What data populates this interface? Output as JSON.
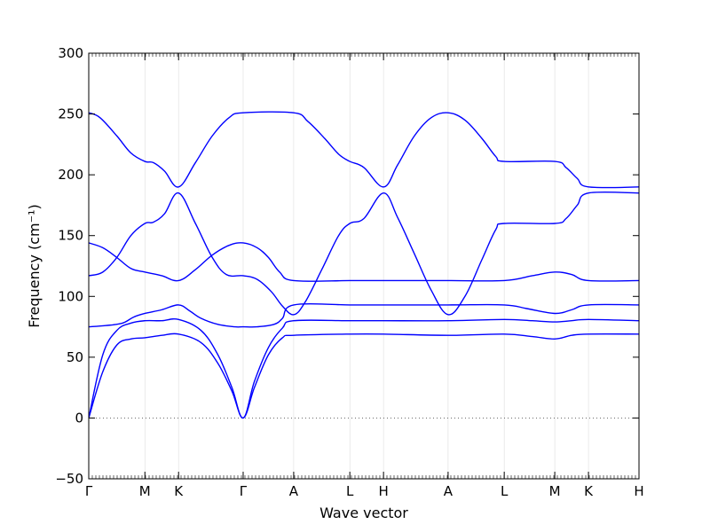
{
  "chart_data": {
    "type": "line",
    "title": "",
    "xlabel": "Wave vector",
    "ylabel": "Frequency (cm⁻¹)",
    "ylim": [
      -50,
      300
    ],
    "yticks": [
      -50,
      0,
      50,
      100,
      150,
      200,
      250,
      300
    ],
    "zero_line": true,
    "legend": "none",
    "band_color": "#0000ff",
    "zero_line_color": "#555555",
    "kpoints": [
      {
        "label": "Γ",
        "x": 0
      },
      {
        "label": "M",
        "x": 1
      },
      {
        "label": "K",
        "x": 1.6
      },
      {
        "label": "Γ",
        "x": 2.75
      },
      {
        "label": "A",
        "x": 3.65
      },
      {
        "label": "L",
        "x": 4.65
      },
      {
        "label": "H",
        "x": 5.25
      },
      {
        "label": "A",
        "x": 6.4
      },
      {
        "label": "L",
        "x": 7.4
      },
      {
        "label": "M",
        "x": 8.3
      },
      {
        "label": "K",
        "x": 8.9
      },
      {
        "label": "H",
        "x": 9.8
      }
    ],
    "series": [
      {
        "points": [
          [
            0,
            0
          ],
          [
            0.25,
            38
          ],
          [
            0.5,
            60
          ],
          [
            0.75,
            65
          ],
          [
            1,
            66
          ],
          [
            1.3,
            68
          ],
          [
            1.6,
            69
          ],
          [
            2.0,
            62
          ],
          [
            2.3,
            45
          ],
          [
            2.55,
            22
          ],
          [
            2.75,
            0
          ],
          [
            2.95,
            25
          ],
          [
            3.2,
            52
          ],
          [
            3.45,
            66
          ],
          [
            3.65,
            68
          ],
          [
            4.65,
            69
          ],
          [
            5.25,
            69
          ],
          [
            6.4,
            68
          ],
          [
            7.4,
            69
          ],
          [
            7.9,
            67
          ],
          [
            8.3,
            65
          ],
          [
            8.6,
            68
          ],
          [
            8.9,
            69
          ],
          [
            9.8,
            69
          ]
        ]
      },
      {
        "points": [
          [
            0,
            0
          ],
          [
            0.25,
            52
          ],
          [
            0.5,
            72
          ],
          [
            0.75,
            78
          ],
          [
            1,
            80
          ],
          [
            1.3,
            80
          ],
          [
            1.6,
            81
          ],
          [
            2.0,
            72
          ],
          [
            2.3,
            52
          ],
          [
            2.55,
            25
          ],
          [
            2.75,
            0
          ],
          [
            2.95,
            30
          ],
          [
            3.2,
            58
          ],
          [
            3.45,
            74
          ],
          [
            3.65,
            80
          ],
          [
            4.65,
            80
          ],
          [
            5.25,
            80
          ],
          [
            6.4,
            80
          ],
          [
            7.4,
            81
          ],
          [
            7.9,
            80
          ],
          [
            8.3,
            79
          ],
          [
            8.6,
            80
          ],
          [
            8.9,
            81
          ],
          [
            9.8,
            80
          ]
        ]
      },
      {
        "points": [
          [
            0,
            75
          ],
          [
            0.3,
            76
          ],
          [
            0.6,
            78
          ],
          [
            0.8,
            83
          ],
          [
            1,
            86
          ],
          [
            1.3,
            89
          ],
          [
            1.6,
            93
          ],
          [
            1.8,
            88
          ],
          [
            2.0,
            82
          ],
          [
            2.3,
            77
          ],
          [
            2.6,
            75
          ],
          [
            2.75,
            75
          ],
          [
            3.0,
            75
          ],
          [
            3.3,
            77
          ],
          [
            3.45,
            82
          ],
          [
            3.65,
            93
          ],
          [
            4.65,
            93
          ],
          [
            5.25,
            93
          ],
          [
            6.4,
            93
          ],
          [
            7.4,
            93
          ],
          [
            7.8,
            90
          ],
          [
            8.3,
            86
          ],
          [
            8.6,
            89
          ],
          [
            8.9,
            93
          ],
          [
            9.8,
            93
          ]
        ]
      },
      {
        "points": [
          [
            0,
            117
          ],
          [
            0.25,
            120
          ],
          [
            0.5,
            132
          ],
          [
            0.75,
            150
          ],
          [
            1,
            160
          ],
          [
            1.15,
            161
          ],
          [
            1.35,
            168
          ],
          [
            1.6,
            185
          ],
          [
            1.9,
            160
          ],
          [
            2.2,
            132
          ],
          [
            2.45,
            118
          ],
          [
            2.75,
            117
          ],
          [
            3.0,
            114
          ],
          [
            3.25,
            104
          ],
          [
            3.45,
            92
          ],
          [
            3.65,
            85
          ],
          [
            3.85,
            95
          ],
          [
            4.15,
            122
          ],
          [
            4.45,
            150
          ],
          [
            4.65,
            160
          ],
          [
            4.9,
            164
          ],
          [
            5.25,
            185
          ],
          [
            5.5,
            165
          ],
          [
            5.8,
            135
          ],
          [
            6.1,
            105
          ],
          [
            6.4,
            85
          ],
          [
            6.7,
            100
          ],
          [
            7.0,
            130
          ],
          [
            7.25,
            155
          ],
          [
            7.4,
            160
          ],
          [
            8.3,
            160
          ],
          [
            8.5,
            164
          ],
          [
            8.7,
            175
          ],
          [
            8.9,
            185
          ],
          [
            9.8,
            185
          ]
        ]
      },
      {
        "points": [
          [
            0,
            144
          ],
          [
            0.25,
            140
          ],
          [
            0.5,
            132
          ],
          [
            0.75,
            123
          ],
          [
            1,
            120
          ],
          [
            1.3,
            117
          ],
          [
            1.6,
            113
          ],
          [
            1.9,
            122
          ],
          [
            2.2,
            134
          ],
          [
            2.5,
            142
          ],
          [
            2.75,
            144
          ],
          [
            3.0,
            140
          ],
          [
            3.2,
            132
          ],
          [
            3.4,
            120
          ],
          [
            3.65,
            113
          ],
          [
            4.65,
            113
          ],
          [
            5.25,
            113
          ],
          [
            6.4,
            113
          ],
          [
            7.4,
            113
          ],
          [
            7.9,
            117
          ],
          [
            8.3,
            120
          ],
          [
            8.6,
            118
          ],
          [
            8.9,
            113
          ],
          [
            9.8,
            113
          ]
        ]
      },
      {
        "points": [
          [
            0,
            251
          ],
          [
            0.2,
            247
          ],
          [
            0.5,
            232
          ],
          [
            0.75,
            218
          ],
          [
            1,
            211
          ],
          [
            1.15,
            210
          ],
          [
            1.35,
            203
          ],
          [
            1.6,
            190
          ],
          [
            1.9,
            210
          ],
          [
            2.2,
            232
          ],
          [
            2.5,
            247
          ],
          [
            2.75,
            251
          ],
          [
            3.65,
            251
          ],
          [
            3.9,
            244
          ],
          [
            4.2,
            230
          ],
          [
            4.45,
            217
          ],
          [
            4.65,
            211
          ],
          [
            4.9,
            206
          ],
          [
            5.25,
            190
          ],
          [
            5.5,
            208
          ],
          [
            5.8,
            232
          ],
          [
            6.1,
            247
          ],
          [
            6.4,
            251
          ],
          [
            6.7,
            245
          ],
          [
            7.0,
            230
          ],
          [
            7.25,
            215
          ],
          [
            7.4,
            211
          ],
          [
            8.3,
            211
          ],
          [
            8.5,
            206
          ],
          [
            8.7,
            197
          ],
          [
            8.9,
            190
          ],
          [
            9.8,
            190
          ]
        ]
      }
    ]
  }
}
